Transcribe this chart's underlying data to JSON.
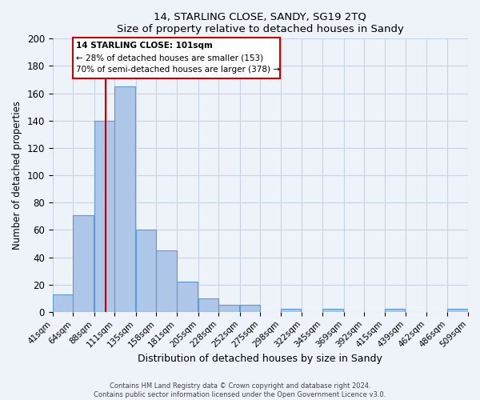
{
  "title": "14, STARLING CLOSE, SANDY, SG19 2TQ",
  "subtitle": "Size of property relative to detached houses in Sandy",
  "xlabel": "Distribution of detached houses by size in Sandy",
  "ylabel": "Number of detached properties",
  "footer_line1": "Contains HM Land Registry data © Crown copyright and database right 2024.",
  "footer_line2": "Contains public sector information licensed under the Open Government Licence v3.0.",
  "bin_labels": [
    "41sqm",
    "64sqm",
    "88sqm",
    "111sqm",
    "135sqm",
    "158sqm",
    "181sqm",
    "205sqm",
    "228sqm",
    "252sqm",
    "275sqm",
    "298sqm",
    "322sqm",
    "345sqm",
    "369sqm",
    "392sqm",
    "415sqm",
    "439sqm",
    "462sqm",
    "486sqm",
    "509sqm"
  ],
  "bin_edges": [
    41,
    64,
    88,
    111,
    135,
    158,
    181,
    205,
    228,
    252,
    275,
    298,
    322,
    345,
    369,
    392,
    415,
    439,
    462,
    486,
    509
  ],
  "bin_counts": [
    13,
    71,
    140,
    165,
    60,
    45,
    22,
    10,
    5,
    5,
    0,
    2,
    0,
    2,
    0,
    0,
    2,
    0,
    0,
    2
  ],
  "bar_color": "#aec6e8",
  "bar_edge_color": "#5b9bd5",
  "property_size": 101,
  "vline_color": "#cc0000",
  "annotation_title": "14 STARLING CLOSE: 101sqm",
  "annotation_line1": "← 28% of detached houses are smaller (153)",
  "annotation_line2": "70% of semi-detached houses are larger (378) →",
  "ylim": [
    0,
    200
  ],
  "yticks": [
    0,
    20,
    40,
    60,
    80,
    100,
    120,
    140,
    160,
    180,
    200
  ],
  "background_color": "#eef2f9",
  "grid_color": "#c8d4e8"
}
